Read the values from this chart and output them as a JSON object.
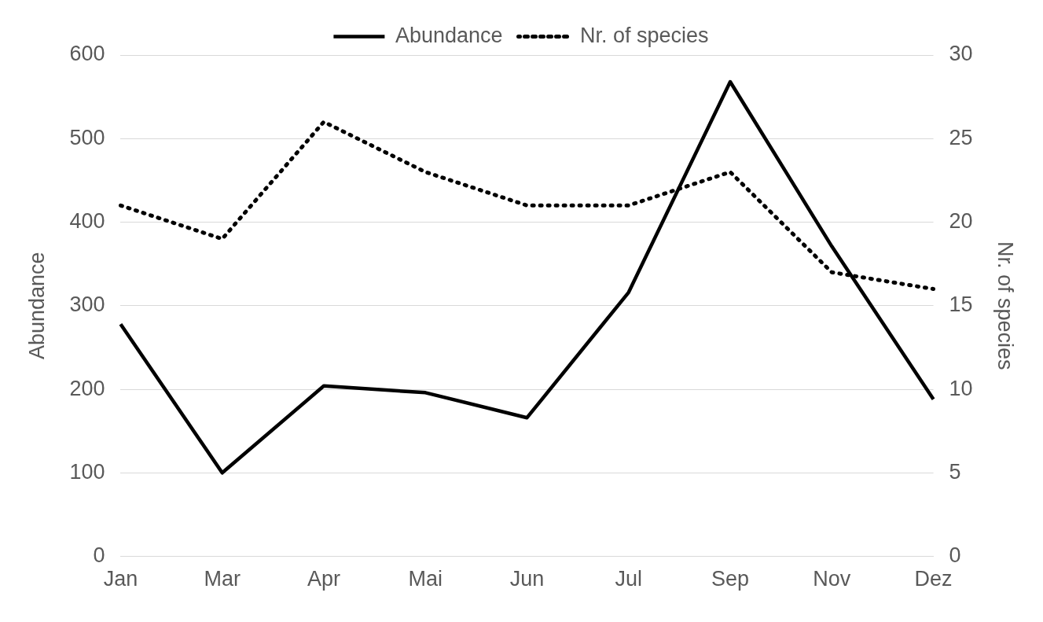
{
  "chart_data": {
    "type": "line",
    "xlabel": null,
    "ylabel": "Abundance",
    "y2label": "Nr. of species",
    "categories": [
      "Jan",
      "Mar",
      "Apr",
      "Mai",
      "Jun",
      "Jul",
      "Sep",
      "Nov",
      "Dez"
    ],
    "series": [
      {
        "name": "Abundance",
        "color": "#000000",
        "line_style": "solid",
        "values": [
          278,
          100,
          204,
          196,
          166,
          316,
          568,
          371,
          188
        ]
      },
      {
        "name": "Nr. of species",
        "color": "#000000",
        "line_style": "dotted",
        "axis": "y2",
        "values": [
          21,
          19,
          26,
          23,
          21,
          21,
          23,
          17,
          16
        ]
      }
    ],
    "ylim": [
      0,
      600
    ],
    "yticks": [
      0,
      100,
      200,
      300,
      400,
      500,
      600
    ],
    "y2lim": [
      0,
      30
    ],
    "y2ticks": [
      0,
      5,
      10,
      15,
      20,
      25,
      30
    ],
    "grid": "y",
    "legend": "top",
    "marker": "none"
  }
}
